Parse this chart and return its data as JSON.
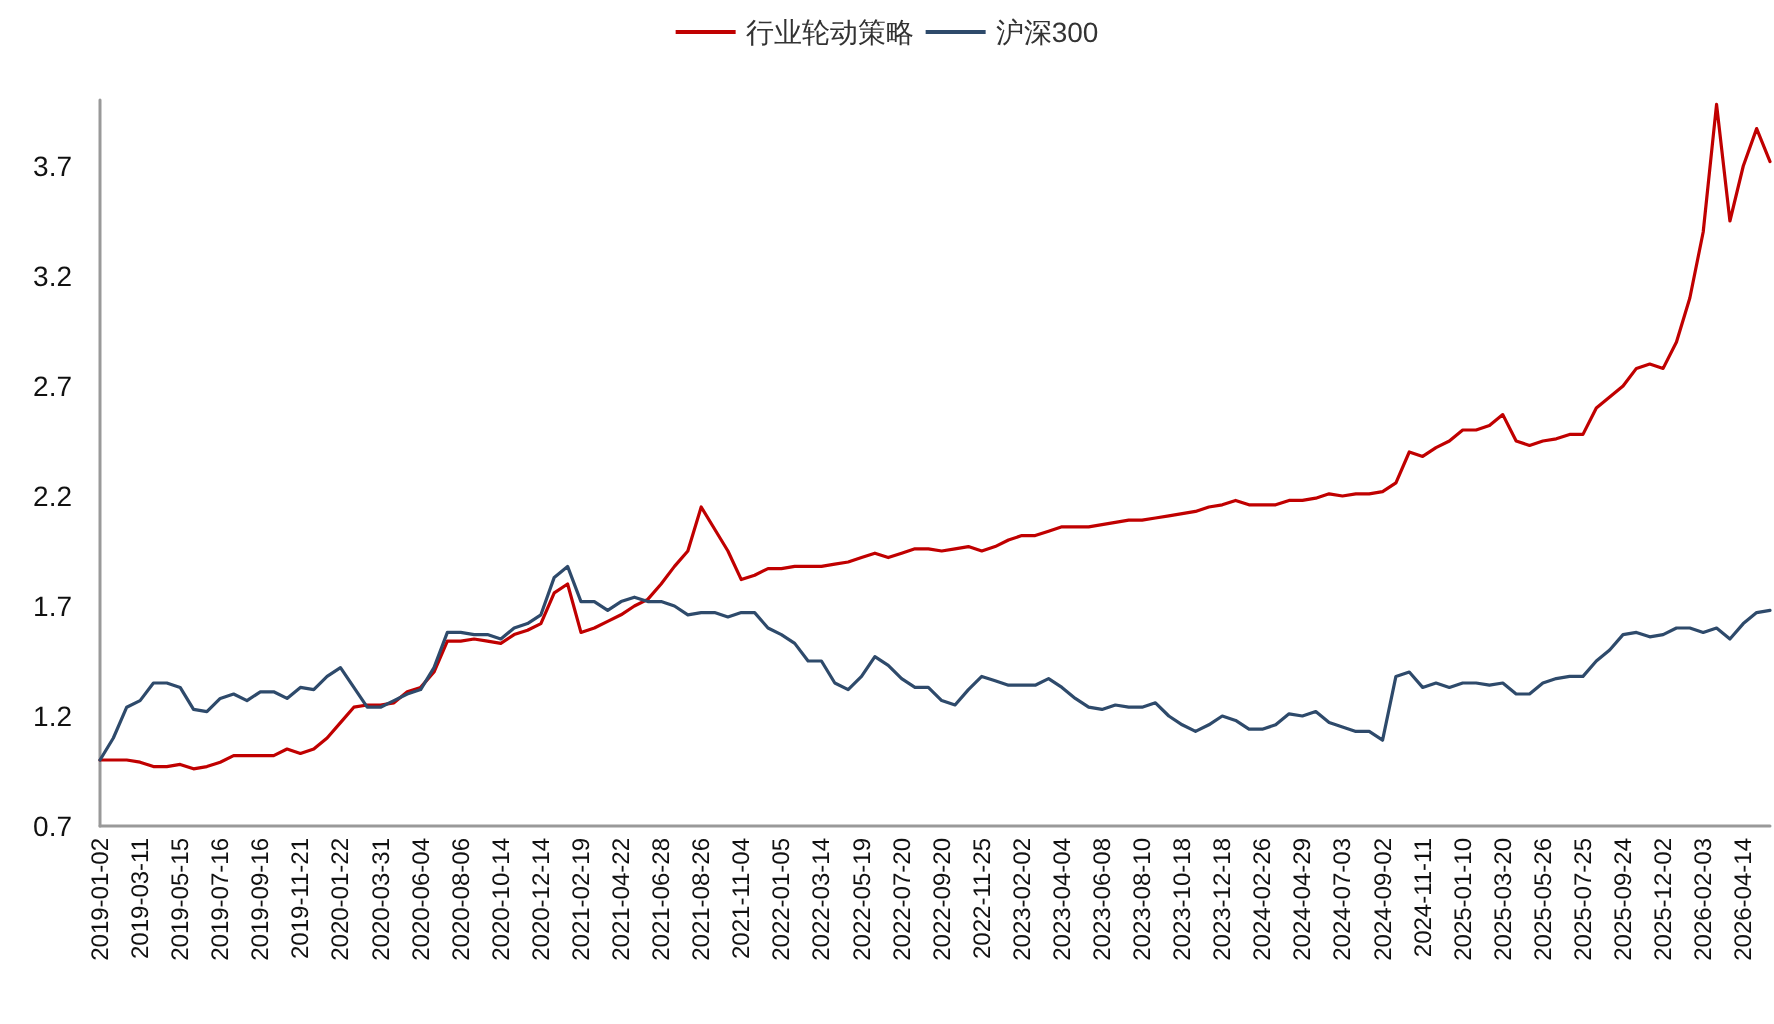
{
  "chart_data": {
    "type": "line",
    "categories": [
      "2019-01-02",
      null,
      null,
      "2019-03-11",
      null,
      null,
      "2019-05-15",
      null,
      null,
      "2019-07-16",
      null,
      null,
      "2019-09-16",
      null,
      null,
      "2019-11-21",
      null,
      null,
      "2020-01-22",
      null,
      null,
      "2020-03-31",
      null,
      null,
      "2020-06-04",
      null,
      null,
      "2020-08-06",
      null,
      null,
      "2020-10-14",
      null,
      null,
      "2020-12-14",
      null,
      null,
      "2021-02-19",
      null,
      null,
      "2021-04-22",
      null,
      null,
      "2021-06-28",
      null,
      null,
      "2021-08-26",
      null,
      null,
      "2021-11-04",
      null,
      null,
      "2022-01-05",
      null,
      null,
      "2022-03-14",
      null,
      null,
      "2022-05-19",
      null,
      null,
      "2022-07-20",
      null,
      null,
      "2022-09-20",
      null,
      null,
      "2022-11-25",
      null,
      null,
      "2023-02-02",
      null,
      null,
      "2023-04-04",
      null,
      null,
      "2023-06-08",
      null,
      null,
      "2023-08-10",
      null,
      null,
      "2023-10-18",
      null,
      null,
      "2023-12-18",
      null,
      null,
      "2024-02-26",
      null,
      null,
      "2024-04-29",
      null,
      null,
      "2024-07-03",
      null,
      null,
      "2024-09-02",
      null,
      null,
      "2024-11-11",
      null,
      null,
      "2025-01-10",
      null,
      null,
      "2025-03-20",
      null,
      null,
      "2025-05-26",
      null,
      null,
      "2025-07-25",
      null,
      null,
      "2025-09-24",
      null,
      null,
      "2025-12-02",
      null,
      null,
      "2026-02-03",
      null,
      null,
      "2026-04-14",
      null,
      null
    ],
    "series": [
      {
        "name": "行业轮动策略",
        "color": "#c00000",
        "values": [
          1.0,
          1.0,
          1.0,
          0.99,
          0.97,
          0.97,
          0.98,
          0.96,
          0.97,
          0.99,
          1.02,
          1.02,
          1.02,
          1.02,
          1.05,
          1.03,
          1.05,
          1.1,
          1.17,
          1.24,
          1.25,
          1.25,
          1.26,
          1.31,
          1.33,
          1.4,
          1.54,
          1.54,
          1.55,
          1.54,
          1.53,
          1.57,
          1.59,
          1.62,
          1.76,
          1.8,
          1.58,
          1.6,
          1.63,
          1.66,
          1.7,
          1.73,
          1.8,
          1.88,
          1.95,
          2.15,
          2.05,
          1.95,
          1.82,
          1.84,
          1.87,
          1.87,
          1.88,
          1.88,
          1.88,
          1.89,
          1.9,
          1.92,
          1.94,
          1.92,
          1.94,
          1.96,
          1.96,
          1.95,
          1.96,
          1.97,
          1.95,
          1.97,
          2.0,
          2.02,
          2.02,
          2.04,
          2.06,
          2.06,
          2.06,
          2.07,
          2.08,
          2.09,
          2.09,
          2.1,
          2.11,
          2.12,
          2.13,
          2.15,
          2.16,
          2.18,
          2.16,
          2.16,
          2.16,
          2.18,
          2.18,
          2.19,
          2.21,
          2.2,
          2.21,
          2.21,
          2.22,
          2.26,
          2.4,
          2.38,
          2.42,
          2.45,
          2.5,
          2.5,
          2.52,
          2.57,
          2.45,
          2.43,
          2.45,
          2.46,
          2.48,
          2.48,
          2.6,
          2.65,
          2.7,
          2.78,
          2.8,
          2.78,
          2.9,
          3.1,
          3.4,
          3.98,
          3.45,
          3.7,
          3.87,
          3.72
        ]
      },
      {
        "name": "沪深300",
        "color": "#2e4a6b",
        "values": [
          1.0,
          1.1,
          1.24,
          1.27,
          1.35,
          1.35,
          1.33,
          1.23,
          1.22,
          1.28,
          1.3,
          1.27,
          1.31,
          1.31,
          1.28,
          1.33,
          1.32,
          1.38,
          1.42,
          1.33,
          1.24,
          1.24,
          1.27,
          1.3,
          1.32,
          1.42,
          1.58,
          1.58,
          1.57,
          1.57,
          1.55,
          1.6,
          1.62,
          1.66,
          1.83,
          1.88,
          1.72,
          1.72,
          1.68,
          1.72,
          1.74,
          1.72,
          1.72,
          1.7,
          1.66,
          1.67,
          1.67,
          1.65,
          1.67,
          1.67,
          1.6,
          1.57,
          1.53,
          1.45,
          1.45,
          1.35,
          1.32,
          1.38,
          1.47,
          1.43,
          1.37,
          1.33,
          1.33,
          1.27,
          1.25,
          1.32,
          1.38,
          1.36,
          1.34,
          1.34,
          1.34,
          1.37,
          1.33,
          1.28,
          1.24,
          1.23,
          1.25,
          1.24,
          1.24,
          1.26,
          1.2,
          1.16,
          1.13,
          1.16,
          1.2,
          1.18,
          1.14,
          1.14,
          1.16,
          1.21,
          1.2,
          1.22,
          1.17,
          1.15,
          1.13,
          1.13,
          1.09,
          1.38,
          1.4,
          1.33,
          1.35,
          1.33,
          1.35,
          1.35,
          1.34,
          1.35,
          1.3,
          1.3,
          1.35,
          1.37,
          1.38,
          1.38,
          1.45,
          1.5,
          1.57,
          1.58,
          1.56,
          1.57,
          1.6,
          1.6,
          1.58,
          1.6,
          1.55,
          1.62,
          1.67,
          1.68
        ]
      }
    ],
    "ylim": [
      0.7,
      4.0
    ],
    "yticks": [
      0.7,
      1.2,
      1.7,
      2.2,
      2.7,
      3.2,
      3.7
    ],
    "grid": false,
    "legend": "top",
    "marker": "none",
    "line_style": "solid"
  }
}
